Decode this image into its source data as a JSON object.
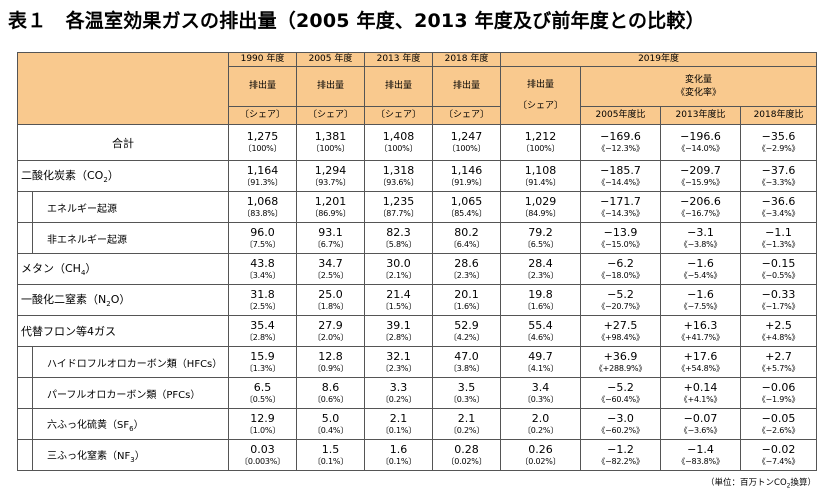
{
  "title": "表１　各温室効果ガスの排出量（2005 年度、2013 年度及び前年度との比較）",
  "header": {
    "y1990": "1990 年度",
    "y2005": "2005 年度",
    "y2013": "2013 年度",
    "y2018": "2018 年度",
    "y2019": "2019年度",
    "emissions": "排出量",
    "share": "〔シェア〕",
    "change": "変化量",
    "change_rate": "《変化率》",
    "vs2005": "2005年度比",
    "vs2013": "2013年度比",
    "vs2018": "2018年度比"
  },
  "rows": {
    "total": {
      "name": "合計",
      "v": [
        "1,275",
        "1,381",
        "1,408",
        "1,247",
        "1,212"
      ],
      "s": [
        "〔100%〕",
        "〔100%〕",
        "〔100%〕",
        "〔100%〕",
        "〔100%〕"
      ],
      "c": [
        "−169.6",
        "−196.6",
        "−35.6"
      ],
      "r": [
        "《−12.3%》",
        "《−14.0%》",
        "《−2.9%》"
      ]
    },
    "co2": {
      "name": "二酸化炭素（CO",
      "sub": "2",
      "close": "）",
      "v": [
        "1,164",
        "1,294",
        "1,318",
        "1,146",
        "1,108"
      ],
      "s": [
        "〔91.3%〕",
        "〔93.7%〕",
        "〔93.6%〕",
        "〔91.9%〕",
        "〔91.4%〕"
      ],
      "c": [
        "−185.7",
        "−209.7",
        "−37.6"
      ],
      "r": [
        "《−14.4%》",
        "《−15.9%》",
        "《−3.3%》"
      ]
    },
    "energy": {
      "name": "エネルギー起源",
      "v": [
        "1,068",
        "1,201",
        "1,235",
        "1,065",
        "1,029"
      ],
      "s": [
        "〔83.8%〕",
        "〔86.9%〕",
        "〔87.7%〕",
        "〔85.4%〕",
        "〔84.9%〕"
      ],
      "c": [
        "−171.7",
        "−206.6",
        "−36.6"
      ],
      "r": [
        "《−14.3%》",
        "《−16.7%》",
        "《−3.4%》"
      ]
    },
    "nonenergy": {
      "name": "非エネルギー起源",
      "v": [
        "96.0",
        "93.1",
        "82.3",
        "80.2",
        "79.2"
      ],
      "s": [
        "〔7.5%〕",
        "〔6.7%〕",
        "〔5.8%〕",
        "〔6.4%〕",
        "〔6.5%〕"
      ],
      "c": [
        "−13.9",
        "−3.1",
        "−1.1"
      ],
      "r": [
        "《−15.0%》",
        "《−3.8%》",
        "《−1.3%》"
      ]
    },
    "ch4": {
      "name": "メタン（CH",
      "sub": "4",
      "close": "）",
      "v": [
        "43.8",
        "34.7",
        "30.0",
        "28.6",
        "28.4"
      ],
      "s": [
        "〔3.4%〕",
        "〔2.5%〕",
        "〔2.1%〕",
        "〔2.3%〕",
        "〔2.3%〕"
      ],
      "c": [
        "−6.2",
        "−1.6",
        "−0.15"
      ],
      "r": [
        "《−18.0%》",
        "《−5.4%》",
        "《−0.5%》"
      ]
    },
    "n2o": {
      "name": "一酸化二窒素（N",
      "sub": "2",
      "close": "O）",
      "v": [
        "31.8",
        "25.0",
        "21.4",
        "20.1",
        "19.8"
      ],
      "s": [
        "〔2.5%〕",
        "〔1.8%〕",
        "〔1.5%〕",
        "〔1.6%〕",
        "〔1.6%〕"
      ],
      "c": [
        "−5.2",
        "−1.6",
        "−0.33"
      ],
      "r": [
        "《−20.7%》",
        "《−7.5%》",
        "《−1.7%》"
      ]
    },
    "fgas": {
      "name": "代替フロン等4ガス",
      "v": [
        "35.4",
        "27.9",
        "39.1",
        "52.9",
        "55.4"
      ],
      "s": [
        "〔2.8%〕",
        "〔2.0%〕",
        "〔2.8%〕",
        "〔4.2%〕",
        "〔4.6%〕"
      ],
      "c": [
        "+27.5",
        "+16.3",
        "+2.5"
      ],
      "r": [
        "《+98.4%》",
        "《+41.7%》",
        "《+4.8%》"
      ]
    },
    "hfc": {
      "name": "ハイドロフルオロカーボン類（HFCs）",
      "v": [
        "15.9",
        "12.8",
        "32.1",
        "47.0",
        "49.7"
      ],
      "s": [
        "〔1.3%〕",
        "〔0.9%〕",
        "〔2.3%〕",
        "〔3.8%〕",
        "〔4.1%〕"
      ],
      "c": [
        "+36.9",
        "+17.6",
        "+2.7"
      ],
      "r": [
        "《+288.9%》",
        "《+54.8%》",
        "《+5.7%》"
      ]
    },
    "pfc": {
      "name": "パーフルオロカーボン類（PFCs）",
      "v": [
        "6.5",
        "8.6",
        "3.3",
        "3.5",
        "3.4"
      ],
      "s": [
        "〔0.5%〕",
        "〔0.6%〕",
        "〔0.2%〕",
        "〔0.3%〕",
        "〔0.3%〕"
      ],
      "c": [
        "−5.2",
        "+0.14",
        "−0.06"
      ],
      "r": [
        "《−60.4%》",
        "《+4.1%》",
        "《−1.9%》"
      ]
    },
    "sf6": {
      "name": "六ふっ化硫黄（SF",
      "sub": "6",
      "close": "）",
      "v": [
        "12.9",
        "5.0",
        "2.1",
        "2.1",
        "2.0"
      ],
      "s": [
        "〔1.0%〕",
        "〔0.4%〕",
        "〔0.1%〕",
        "〔0.2%〕",
        "〔0.2%〕"
      ],
      "c": [
        "−3.0",
        "−0.07",
        "−0.05"
      ],
      "r": [
        "《−60.2%》",
        "《−3.6%》",
        "《−2.6%》"
      ]
    },
    "nf3": {
      "name": "三ふっ化窒素（NF",
      "sub": "3",
      "close": "）",
      "v": [
        "0.03",
        "1.5",
        "1.6",
        "0.28",
        "0.26"
      ],
      "s": [
        "〔0.003%〕",
        "〔0.1%〕",
        "〔0.1%〕",
        "〔0.02%〕",
        "〔0.02%〕"
      ],
      "c": [
        "−1.2",
        "−1.4",
        "−0.02"
      ],
      "r": [
        "《−82.2%》",
        "《−83.8%》",
        "《−7.4%》"
      ]
    }
  },
  "unit_note": {
    "prefix": "（単位：百万トンCO",
    "sub": "2",
    "suffix": "換算）"
  },
  "colors": {
    "header_bg": "#f9c98e",
    "border": "#555555"
  }
}
